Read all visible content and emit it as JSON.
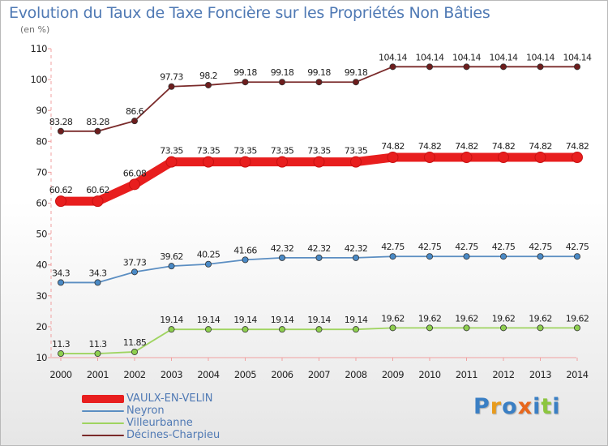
{
  "header": {
    "title": "Evolution du Taux de Taxe Foncière sur les Propriétés Non Bâties",
    "subtitle": "(en %)"
  },
  "chart_data": {
    "type": "line",
    "title": "Evolution du Taux de Taxe Foncière sur les Propriétés Non Bâties",
    "subtitle": "(en %)",
    "xlabel": "",
    "ylabel": "",
    "ylim": [
      10,
      110
    ],
    "yticks": [
      10,
      20,
      30,
      40,
      50,
      60,
      70,
      80,
      90,
      100,
      110
    ],
    "grid": false,
    "legend_position": "bottom-left",
    "categories": [
      "2000",
      "2001",
      "2002",
      "2003",
      "2004",
      "2005",
      "2006",
      "2007",
      "2008",
      "2009",
      "2010",
      "2011",
      "2012",
      "2013",
      "2014"
    ],
    "series": [
      {
        "name": "VAULX-EN-VELIN",
        "color": "#e81e1e",
        "marker_color": "#e81e1e",
        "emphasis": true,
        "values": [
          60.62,
          60.62,
          66.08,
          73.35,
          73.35,
          73.35,
          73.35,
          73.35,
          73.35,
          74.82,
          74.82,
          74.82,
          74.82,
          74.82,
          74.82
        ],
        "labels": [
          "60.62",
          "60.62",
          "66.08",
          "73.35",
          "73.35",
          "73.35",
          "73.35",
          "73.35",
          "73.35",
          "74.82",
          "74.82",
          "74.82",
          "74.82",
          "74.82",
          "74.82"
        ]
      },
      {
        "name": "Neyron",
        "color": "#5b8ec2",
        "marker_color": "#4a8ac6",
        "emphasis": false,
        "values": [
          34.3,
          34.3,
          37.73,
          39.62,
          40.25,
          41.66,
          42.32,
          42.32,
          42.32,
          42.75,
          42.75,
          42.75,
          42.75,
          42.75,
          42.75
        ],
        "labels": [
          "34.3",
          "34.3",
          "37.73",
          "39.62",
          "40.25",
          "41.66",
          "42.32",
          "42.32",
          "42.32",
          "42.75",
          "42.75",
          "42.75",
          "42.75",
          "42.75",
          "42.75"
        ]
      },
      {
        "name": "Villeurbanne",
        "color": "#9fd460",
        "marker_color": "#8ecf4f",
        "emphasis": false,
        "values": [
          11.3,
          11.3,
          11.85,
          19.14,
          19.14,
          19.14,
          19.14,
          19.14,
          19.14,
          19.62,
          19.62,
          19.62,
          19.62,
          19.62,
          19.62
        ],
        "labels": [
          "11.3",
          "11.3",
          "11.85",
          "19.14",
          "19.14",
          "19.14",
          "19.14",
          "19.14",
          "19.14",
          "19.62",
          "19.62",
          "19.62",
          "19.62",
          "19.62",
          "19.62"
        ]
      },
      {
        "name": "Décines-Charpieu",
        "color": "#7a2a2a",
        "marker_color": "#6e1d1d",
        "emphasis": false,
        "values": [
          83.28,
          83.28,
          86.6,
          97.73,
          98.2,
          99.18,
          99.18,
          99.18,
          99.18,
          104.14,
          104.14,
          104.14,
          104.14,
          104.14,
          104.14
        ],
        "labels": [
          "83.28",
          "83.28",
          "86.6",
          "97.73",
          "98.2",
          "99.18",
          "99.18",
          "99.18",
          "99.18",
          "104.14",
          "104.14",
          "104.14",
          "104.14",
          "104.14",
          "104.14"
        ]
      }
    ]
  },
  "legend": {
    "items": [
      {
        "label": "VAULX-EN-VELIN",
        "color": "#e81e1e"
      },
      {
        "label": "Neyron",
        "color": "#5b8ec2"
      },
      {
        "label": "Villeurbanne",
        "color": "#9fd460"
      },
      {
        "label": "Décines-Charpieu",
        "color": "#7a2a2a"
      }
    ]
  },
  "logo": {
    "text": "Proxiti",
    "letters": [
      {
        "char": "P",
        "color": "#3a7fc4"
      },
      {
        "char": "r",
        "color": "#e89b1c"
      },
      {
        "char": "o",
        "color": "#3a7fc4"
      },
      {
        "char": "x",
        "color": "#e8671c"
      },
      {
        "char": "i",
        "color": "#3a7fc4"
      },
      {
        "char": "t",
        "color": "#8cc63f"
      },
      {
        "char": "i",
        "color": "#3a7fc4"
      }
    ]
  }
}
